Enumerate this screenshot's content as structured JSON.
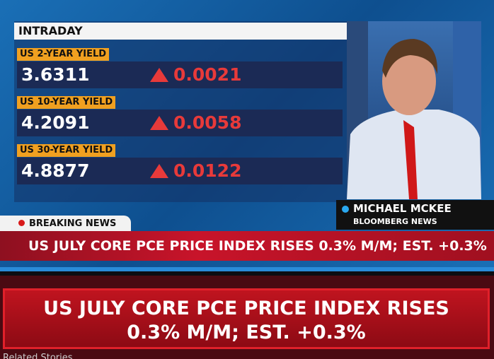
{
  "header": {
    "title": "INTRADAY"
  },
  "yields": [
    {
      "label": "US 2-YEAR YIELD",
      "value": "3.6311",
      "change": "0.0021"
    },
    {
      "label": "US 10-YEAR YIELD",
      "value": "4.2091",
      "change": "0.0058"
    },
    {
      "label": "US 30-YEAR YIELD",
      "value": "4.8877",
      "change": "0.0122"
    }
  ],
  "anchor": {
    "name": "MICHAEL MCKEE",
    "affiliation": "BLOOMBERG NEWS"
  },
  "breaking": {
    "label": "BREAKING NEWS",
    "headline": "US JULY CORE PCE PRICE INDEX RISES 0.3% M/M; EST. +0.3%"
  },
  "banner": {
    "lines": [
      "US JULY CORE PCE PRICE INDEX RISES",
      "0.3% M/M; EST. +0.3%"
    ]
  },
  "footer": {
    "text": "Related Stories"
  }
}
